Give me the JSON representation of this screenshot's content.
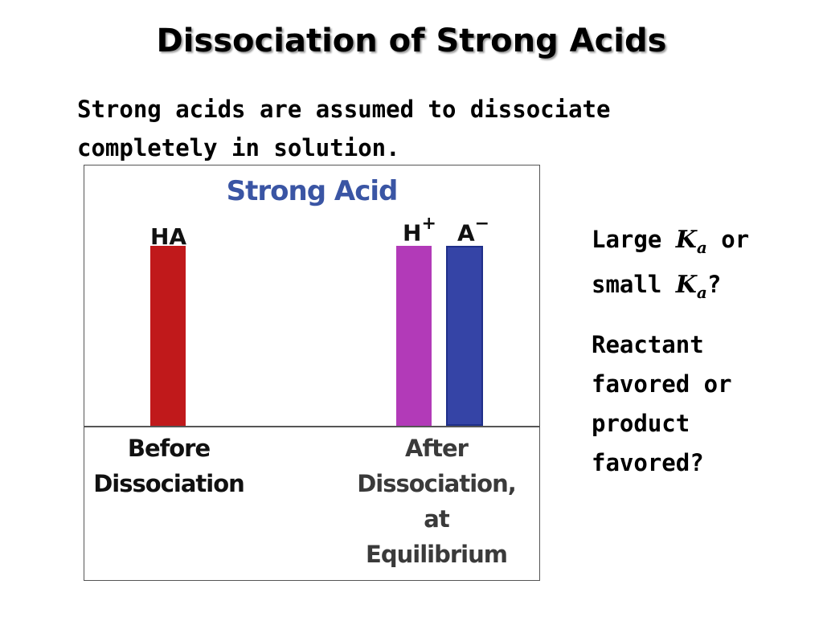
{
  "title": "Dissociation of Strong Acids",
  "intro": "Strong acids are assumed to dissociate completely in solution.",
  "figure": {
    "title": "Strong Acid",
    "species": [
      {
        "label": "HA",
        "charge": ""
      },
      {
        "label": "H",
        "charge": "+"
      },
      {
        "label": "A",
        "charge": "−"
      }
    ],
    "before_caption": "Before Dissociation",
    "after_caption": [
      "After",
      "Dissociation,",
      "at",
      "Equilibrium"
    ],
    "colors": {
      "HA": "#c0191b",
      "H_plus": "#b23ab8",
      "A_minus": "#3544a6"
    }
  },
  "chart_data": {
    "type": "bar",
    "title": "Strong Acid",
    "categories": [
      "Before Dissociation",
      "After Dissociation, at Equilibrium"
    ],
    "series": [
      {
        "name": "HA",
        "values": [
          1.0,
          0
        ]
      },
      {
        "name": "H+",
        "values": [
          0,
          1.0
        ]
      },
      {
        "name": "A−",
        "values": [
          0,
          1.0
        ]
      }
    ],
    "ylim": [
      0,
      1.0
    ]
  },
  "questions": {
    "q1_pre": "Large",
    "k_symbol": "K",
    "k_sub": "a",
    "q1_mid": "or small",
    "q1_end": "?",
    "q2": [
      "Reactant",
      "favored or",
      "product",
      "favored?"
    ]
  }
}
